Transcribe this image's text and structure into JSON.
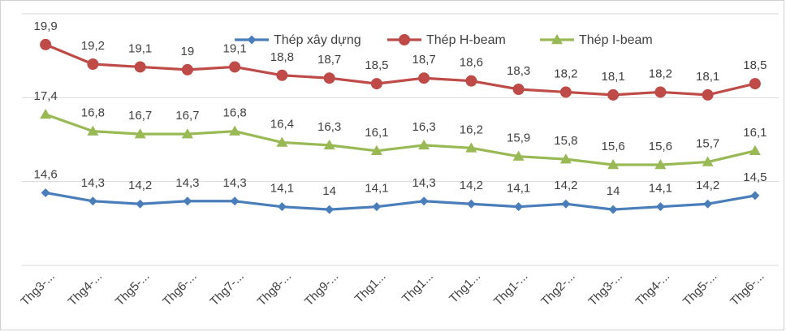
{
  "chart_data": {
    "type": "line",
    "title": "",
    "xlabel": "",
    "ylabel": "",
    "ylim": [
      12,
      21
    ],
    "grid": true,
    "legend_position": "top",
    "categories": [
      "Thg3-...",
      "Thg4-...",
      "Thg5-...",
      "Thg6-...",
      "Thg7-...",
      "Thg8-...",
      "Thg9-...",
      "Thg1...",
      "Thg1...",
      "Thg1...",
      "Thg1-...",
      "Thg2-...",
      "Thg3-...",
      "Thg4-...",
      "Thg5-...",
      "Thg6-..."
    ],
    "series": [
      {
        "name": "Thép xây dựng",
        "color": "#4a7ebb",
        "marker": "diamond",
        "values": [
          14.6,
          14.3,
          14.2,
          14.3,
          14.3,
          14.1,
          14,
          14.1,
          14.3,
          14.2,
          14.1,
          14.2,
          14,
          14.1,
          14.2,
          14.5
        ],
        "labels": [
          "14,6",
          "14,3",
          "14,2",
          "14,3",
          "14,3",
          "14,1",
          "14",
          "14,1",
          "14,3",
          "14,2",
          "14,1",
          "14,2",
          "14",
          "14,1",
          "14,2",
          "14,5"
        ]
      },
      {
        "name": "Thép H-beam",
        "color": "#be4b48",
        "marker": "circle",
        "values": [
          19.9,
          19.2,
          19.1,
          19,
          19.1,
          18.8,
          18.7,
          18.5,
          18.7,
          18.6,
          18.3,
          18.2,
          18.1,
          18.2,
          18.1,
          18.5
        ],
        "labels": [
          "19,9",
          "19,2",
          "19,1",
          "19",
          "19,1",
          "18,8",
          "18,7",
          "18,5",
          "18,7",
          "18,6",
          "18,3",
          "18,2",
          "18,1",
          "18,2",
          "18,1",
          "18,5"
        ]
      },
      {
        "name": "Thép I-beam",
        "color": "#98b954",
        "marker": "triangle",
        "values": [
          17.4,
          16.8,
          16.7,
          16.7,
          16.8,
          16.4,
          16.3,
          16.1,
          16.3,
          16.2,
          15.9,
          15.8,
          15.6,
          15.6,
          15.7,
          16.1
        ],
        "labels": [
          "17,4",
          "16,8",
          "16,7",
          "16,7",
          "16,8",
          "16,4",
          "16,3",
          "16,1",
          "16,3",
          "16,2",
          "15,9",
          "15,8",
          "15,6",
          "15,6",
          "15,7",
          "16,1"
        ]
      }
    ]
  }
}
